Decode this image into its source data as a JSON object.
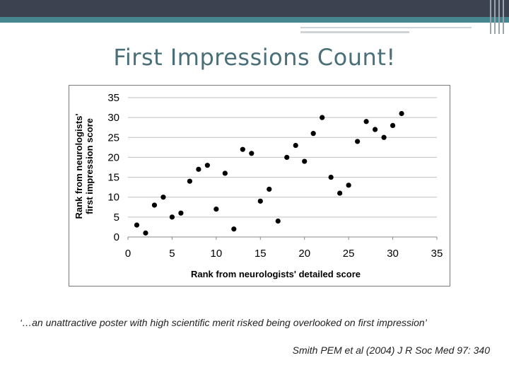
{
  "slide": {
    "title": "First Impressions Count!",
    "quote": "‘…an unattractive poster with high scientific merit risked being overlooked on first impression’",
    "citation": "Smith PEM et al (2004) J R Soc Med 97: 340"
  },
  "theme": {
    "top_band": "#3d4250",
    "top_stripe": "#46868f",
    "title_color": "#4a6f78",
    "point_color": "#000000",
    "grid_color": "#c0c0c0"
  },
  "chart_data": {
    "type": "scatter",
    "title": "",
    "xlabel": "Rank from neurologists' detailed score",
    "ylabel_lines": [
      "Rank from neurologists'",
      "first impression score"
    ],
    "xlim": [
      0,
      35
    ],
    "ylim": [
      0,
      35
    ],
    "xticks": [
      0,
      5,
      10,
      15,
      20,
      25,
      30,
      35
    ],
    "yticks": [
      0,
      5,
      10,
      15,
      20,
      25,
      30,
      35
    ],
    "grid": "horizontal",
    "legend": "none",
    "points": [
      {
        "x": 1,
        "y": 3
      },
      {
        "x": 2,
        "y": 1
      },
      {
        "x": 3,
        "y": 8
      },
      {
        "x": 4,
        "y": 10
      },
      {
        "x": 5,
        "y": 5
      },
      {
        "x": 6,
        "y": 6
      },
      {
        "x": 7,
        "y": 14
      },
      {
        "x": 8,
        "y": 17
      },
      {
        "x": 9,
        "y": 18
      },
      {
        "x": 10,
        "y": 7
      },
      {
        "x": 11,
        "y": 16
      },
      {
        "x": 12,
        "y": 2
      },
      {
        "x": 13,
        "y": 22
      },
      {
        "x": 14,
        "y": 21
      },
      {
        "x": 15,
        "y": 9
      },
      {
        "x": 16,
        "y": 12
      },
      {
        "x": 17,
        "y": 4
      },
      {
        "x": 18,
        "y": 20
      },
      {
        "x": 19,
        "y": 23
      },
      {
        "x": 20,
        "y": 19
      },
      {
        "x": 21,
        "y": 26
      },
      {
        "x": 22,
        "y": 30
      },
      {
        "x": 23,
        "y": 15
      },
      {
        "x": 24,
        "y": 11
      },
      {
        "x": 25,
        "y": 13
      },
      {
        "x": 26,
        "y": 24
      },
      {
        "x": 27,
        "y": 29
      },
      {
        "x": 28,
        "y": 27
      },
      {
        "x": 29,
        "y": 25
      },
      {
        "x": 30,
        "y": 28
      },
      {
        "x": 31,
        "y": 31
      }
    ]
  }
}
